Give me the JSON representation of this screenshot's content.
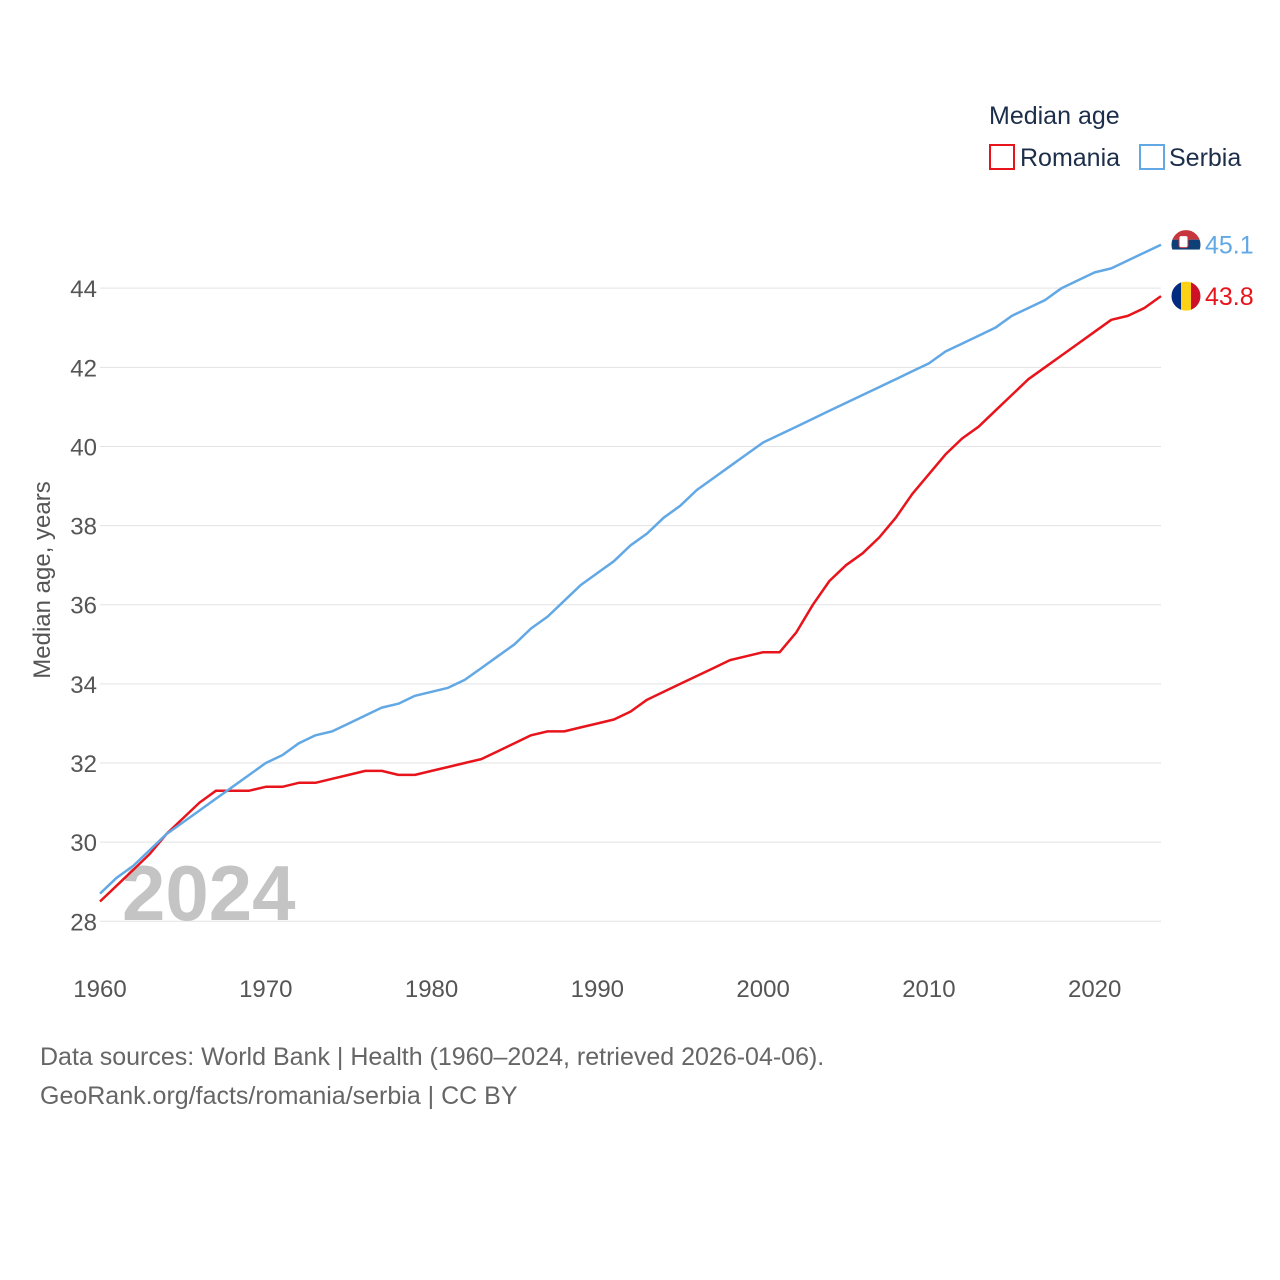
{
  "chart_data": {
    "type": "line",
    "title": "Median age",
    "xlabel": "",
    "ylabel": "Median age, years",
    "xlim": [
      1960,
      2024
    ],
    "ylim": [
      27.3,
      45.9
    ],
    "x_ticks": [
      1960,
      1970,
      1980,
      1990,
      2000,
      2010,
      2020
    ],
    "x_tick_labels": [
      "1960",
      "1970",
      "1980",
      "1990",
      "2000",
      "2010",
      "2020"
    ],
    "y_ticks": [
      28,
      30,
      32,
      34,
      36,
      38,
      40,
      42,
      44
    ],
    "y_tick_labels": [
      "28",
      "30",
      "32",
      "34",
      "36",
      "38",
      "40",
      "42",
      "44"
    ],
    "grid": true,
    "legend_position": "top-right",
    "watermark_year": "2024",
    "x": [
      1960,
      1961,
      1962,
      1963,
      1964,
      1965,
      1966,
      1967,
      1968,
      1969,
      1970,
      1971,
      1972,
      1973,
      1974,
      1975,
      1976,
      1977,
      1978,
      1979,
      1980,
      1981,
      1982,
      1983,
      1984,
      1985,
      1986,
      1987,
      1988,
      1989,
      1990,
      1991,
      1992,
      1993,
      1994,
      1995,
      1996,
      1997,
      1998,
      1999,
      2000,
      2001,
      2002,
      2003,
      2004,
      2005,
      2006,
      2007,
      2008,
      2009,
      2010,
      2011,
      2012,
      2013,
      2014,
      2015,
      2016,
      2017,
      2018,
      2019,
      2020,
      2021,
      2022,
      2023,
      2024
    ],
    "series": [
      {
        "name": "Romania",
        "color": "#e8141c",
        "end_label": "43.8",
        "flag_icon": "romania-flag-icon",
        "values": [
          28.5,
          28.9,
          29.3,
          29.7,
          30.2,
          30.6,
          31.0,
          31.3,
          31.3,
          31.3,
          31.4,
          31.4,
          31.5,
          31.5,
          31.6,
          31.7,
          31.8,
          31.8,
          31.7,
          31.7,
          31.8,
          31.9,
          32.0,
          32.1,
          32.3,
          32.5,
          32.7,
          32.8,
          32.8,
          32.9,
          33.0,
          33.1,
          33.3,
          33.6,
          33.8,
          34.0,
          34.2,
          34.4,
          34.6,
          34.7,
          34.8,
          34.8,
          35.3,
          36.0,
          36.6,
          37.0,
          37.3,
          37.7,
          38.2,
          38.8,
          39.3,
          39.8,
          40.2,
          40.5,
          40.9,
          41.3,
          41.7,
          42.0,
          42.3,
          42.6,
          42.9,
          43.2,
          43.3,
          43.5,
          43.8
        ]
      },
      {
        "name": "Serbia",
        "color": "#62a8e5",
        "end_label": "45.1",
        "flag_icon": "serbia-flag-icon",
        "values": [
          28.7,
          29.1,
          29.4,
          29.8,
          30.2,
          30.5,
          30.8,
          31.1,
          31.4,
          31.7,
          32.0,
          32.2,
          32.5,
          32.7,
          32.8,
          33.0,
          33.2,
          33.4,
          33.5,
          33.7,
          33.8,
          33.9,
          34.1,
          34.4,
          34.7,
          35.0,
          35.4,
          35.7,
          36.1,
          36.5,
          36.8,
          37.1,
          37.5,
          37.8,
          38.2,
          38.5,
          38.9,
          39.2,
          39.5,
          39.8,
          40.1,
          40.3,
          40.5,
          40.7,
          40.9,
          41.1,
          41.3,
          41.5,
          41.7,
          41.9,
          42.1,
          42.4,
          42.6,
          42.8,
          43.0,
          43.3,
          43.5,
          43.7,
          44.0,
          44.2,
          44.4,
          44.5,
          44.7,
          44.9,
          45.1
        ]
      }
    ]
  },
  "footer": {
    "sources": "Data sources: World Bank | Health (1960–2024, retrieved 2026-04-06).",
    "link": "GeoRank.org/facts/romania/serbia | CC BY"
  }
}
